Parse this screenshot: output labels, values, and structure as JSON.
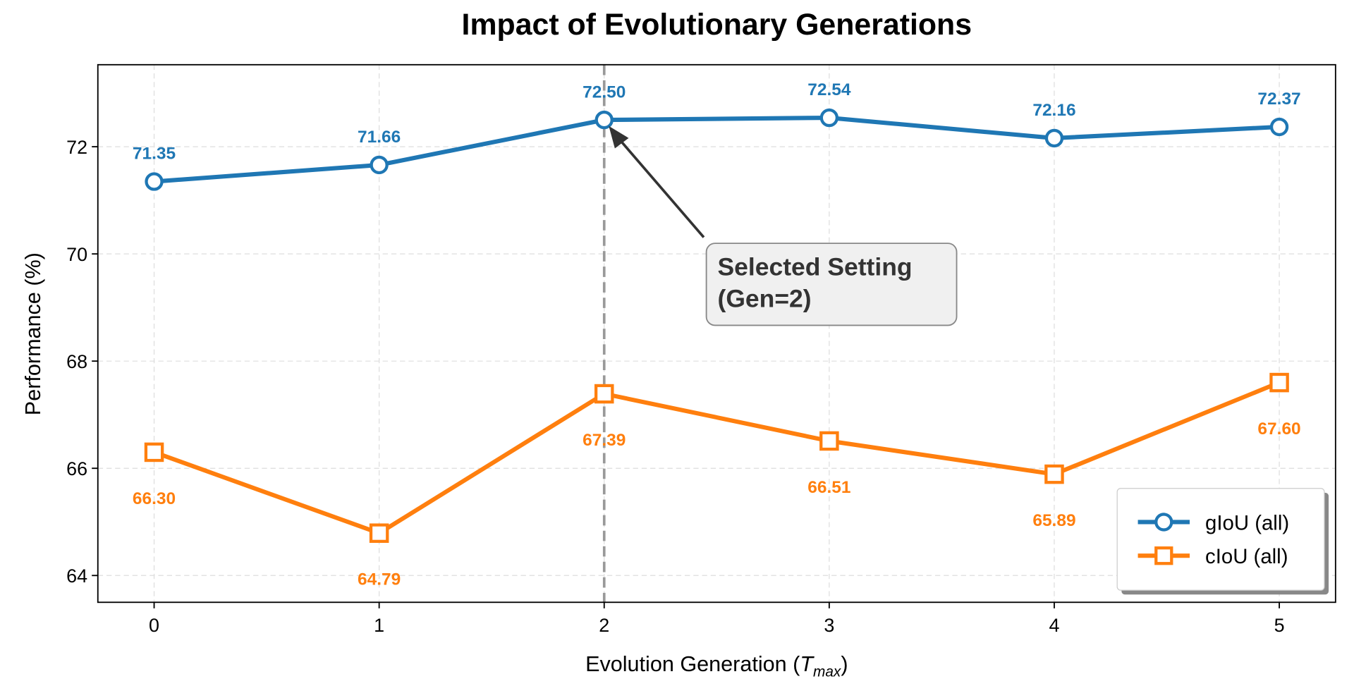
{
  "chart_data": {
    "type": "line",
    "title": "Impact of Evolutionary Generations",
    "xlabel_main": "Evolution Generation (",
    "xlabel_var": "T",
    "xlabel_sub": "max",
    "xlabel_end": ")",
    "ylabel": "Performance (%)",
    "x": [
      0,
      1,
      2,
      3,
      4,
      5
    ],
    "xticks": [
      "0",
      "1",
      "2",
      "3",
      "4",
      "5"
    ],
    "yticks": [
      "64",
      "66",
      "68",
      "70",
      "72"
    ],
    "ytick_values": [
      64,
      66,
      68,
      70,
      72
    ],
    "xlim": [
      -0.25,
      5.25
    ],
    "ylim": [
      63.5,
      73.53
    ],
    "grid": true,
    "legend_placement": "lower-right",
    "series": [
      {
        "name": "gIoU (all)",
        "values": [
          71.35,
          71.66,
          72.5,
          72.54,
          72.16,
          72.37
        ],
        "labels": [
          "71.35",
          "71.66",
          "72.50",
          "72.54",
          "72.16",
          "72.37"
        ],
        "color": "#1f77b4",
        "marker": "circle",
        "label_position": "above"
      },
      {
        "name": "cIoU (all)",
        "values": [
          66.3,
          64.79,
          67.39,
          66.51,
          65.89,
          67.6
        ],
        "labels": [
          "66.30",
          "64.79",
          "67.39",
          "66.51",
          "65.89",
          "67.60"
        ],
        "color": "#ff7f0e",
        "marker": "square",
        "label_position": "below"
      }
    ],
    "vline": {
      "x": 2,
      "color": "#999999",
      "style": "dashed"
    },
    "annotation": {
      "lines": [
        "Selected Setting",
        "(Gen=2)"
      ],
      "points_to": {
        "x": 2,
        "y": 72.5
      }
    }
  }
}
